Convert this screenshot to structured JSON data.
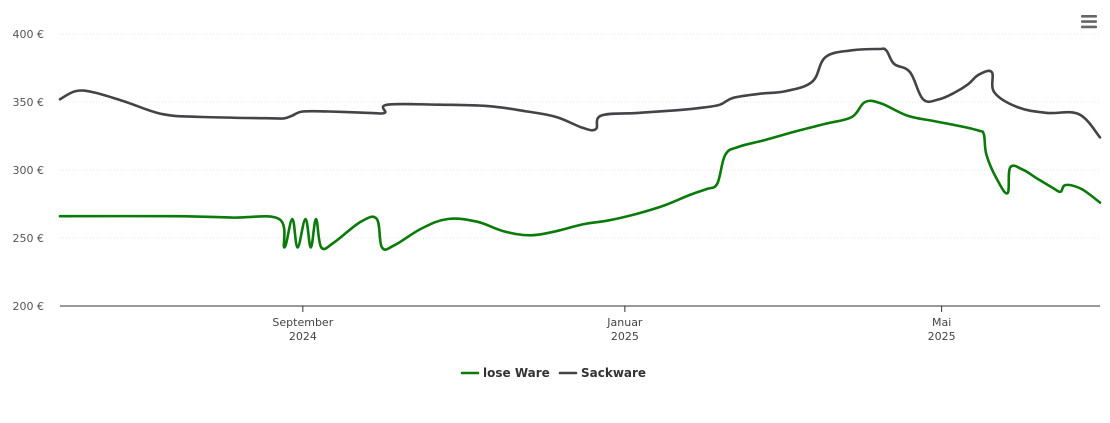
{
  "chart_data": {
    "type": "line",
    "currency_suffix": " €",
    "xlim": [
      "2024-06-01",
      "2025-06-30"
    ],
    "ylim": [
      200,
      400
    ],
    "y_ticks": [
      200,
      250,
      300,
      350,
      400
    ],
    "y_tick_labels": [
      "200 €",
      "250 €",
      "300 €",
      "350 €",
      "400 €"
    ],
    "x_ticks": [
      {
        "date": "2024-09-01",
        "line1": "September",
        "line2": "2024"
      },
      {
        "date": "2025-01-01",
        "line1": "Januar",
        "line2": "2025"
      },
      {
        "date": "2025-05-01",
        "line1": "Mai",
        "line2": "2025"
      }
    ],
    "grid": true,
    "legend_position": "bottom-center",
    "series": [
      {
        "name": "lose Ware",
        "color": "#0a7a0a",
        "points": [
          [
            "2024-06-01",
            266
          ],
          [
            "2024-07-15",
            266
          ],
          [
            "2024-08-05",
            265
          ],
          [
            "2024-08-23",
            264
          ],
          [
            "2024-08-25",
            243
          ],
          [
            "2024-08-28",
            264
          ],
          [
            "2024-08-30",
            243
          ],
          [
            "2024-09-02",
            264
          ],
          [
            "2024-09-04",
            243
          ],
          [
            "2024-09-06",
            264
          ],
          [
            "2024-09-08",
            243
          ],
          [
            "2024-09-13",
            247
          ],
          [
            "2024-09-23",
            262
          ],
          [
            "2024-09-29",
            264
          ],
          [
            "2024-10-01",
            243
          ],
          [
            "2024-10-06",
            245
          ],
          [
            "2024-10-16",
            257
          ],
          [
            "2024-10-26",
            264
          ],
          [
            "2024-11-06",
            262
          ],
          [
            "2024-11-16",
            255
          ],
          [
            "2024-11-26",
            252
          ],
          [
            "2024-12-06",
            255
          ],
          [
            "2024-12-16",
            260
          ],
          [
            "2024-12-26",
            263
          ],
          [
            "2025-01-06",
            268
          ],
          [
            "2025-01-16",
            274
          ],
          [
            "2025-01-26",
            282
          ],
          [
            "2025-02-01",
            286
          ],
          [
            "2025-02-05",
            290
          ],
          [
            "2025-02-08",
            311
          ],
          [
            "2025-02-13",
            317
          ],
          [
            "2025-02-23",
            322
          ],
          [
            "2025-03-06",
            328
          ],
          [
            "2025-03-18",
            334
          ],
          [
            "2025-03-28",
            339
          ],
          [
            "2025-04-02",
            350
          ],
          [
            "2025-04-08",
            349
          ],
          [
            "2025-04-18",
            340
          ],
          [
            "2025-04-28",
            336
          ],
          [
            "2025-05-06",
            333
          ],
          [
            "2025-05-15",
            329
          ],
          [
            "2025-05-17",
            326
          ],
          [
            "2025-05-18",
            311
          ],
          [
            "2025-05-22",
            293
          ],
          [
            "2025-05-26",
            283
          ],
          [
            "2025-05-27",
            302
          ],
          [
            "2025-06-01",
            300
          ],
          [
            "2025-06-06",
            294
          ],
          [
            "2025-06-12",
            287
          ],
          [
            "2025-06-15",
            284
          ],
          [
            "2025-06-17",
            289
          ],
          [
            "2025-06-23",
            286
          ],
          [
            "2025-06-30",
            276
          ]
        ]
      },
      {
        "name": "Sackware",
        "color": "#434348",
        "points": [
          [
            "2024-06-01",
            352
          ],
          [
            "2024-06-07",
            358
          ],
          [
            "2024-06-14",
            357
          ],
          [
            "2024-06-26",
            350
          ],
          [
            "2024-07-10",
            341
          ],
          [
            "2024-07-25",
            339
          ],
          [
            "2024-08-20",
            338
          ],
          [
            "2024-08-25",
            338
          ],
          [
            "2024-08-28",
            340
          ],
          [
            "2024-09-01",
            343
          ],
          [
            "2024-09-11",
            343
          ],
          [
            "2024-09-26",
            342
          ],
          [
            "2024-10-02",
            342
          ],
          [
            "2024-10-03",
            348
          ],
          [
            "2024-10-23",
            348
          ],
          [
            "2024-11-10",
            347
          ],
          [
            "2024-11-25",
            343
          ],
          [
            "2024-12-06",
            339
          ],
          [
            "2024-12-16",
            331
          ],
          [
            "2024-12-21",
            330
          ],
          [
            "2024-12-23",
            340
          ],
          [
            "2025-01-06",
            342
          ],
          [
            "2025-01-21",
            344
          ],
          [
            "2025-01-31",
            346
          ],
          [
            "2025-02-06",
            348
          ],
          [
            "2025-02-11",
            353
          ],
          [
            "2025-02-21",
            356
          ],
          [
            "2025-03-03",
            358
          ],
          [
            "2025-03-13",
            365
          ],
          [
            "2025-03-18",
            383
          ],
          [
            "2025-03-28",
            388
          ],
          [
            "2025-04-07",
            389
          ],
          [
            "2025-04-10",
            388
          ],
          [
            "2025-04-13",
            378
          ],
          [
            "2025-04-19",
            372
          ],
          [
            "2025-04-24",
            352
          ],
          [
            "2025-04-30",
            352
          ],
          [
            "2025-05-06",
            357
          ],
          [
            "2025-05-11",
            363
          ],
          [
            "2025-05-15",
            370
          ],
          [
            "2025-05-20",
            372
          ],
          [
            "2025-05-21",
            357
          ],
          [
            "2025-05-30",
            346
          ],
          [
            "2025-06-10",
            342
          ],
          [
            "2025-06-22",
            341
          ],
          [
            "2025-06-30",
            324
          ]
        ]
      }
    ]
  },
  "legend": [
    {
      "label": "lose Ware",
      "color": "#0a7a0a"
    },
    {
      "label": "Sackware",
      "color": "#434348"
    }
  ],
  "menu_icon": "hamburger-menu-icon"
}
